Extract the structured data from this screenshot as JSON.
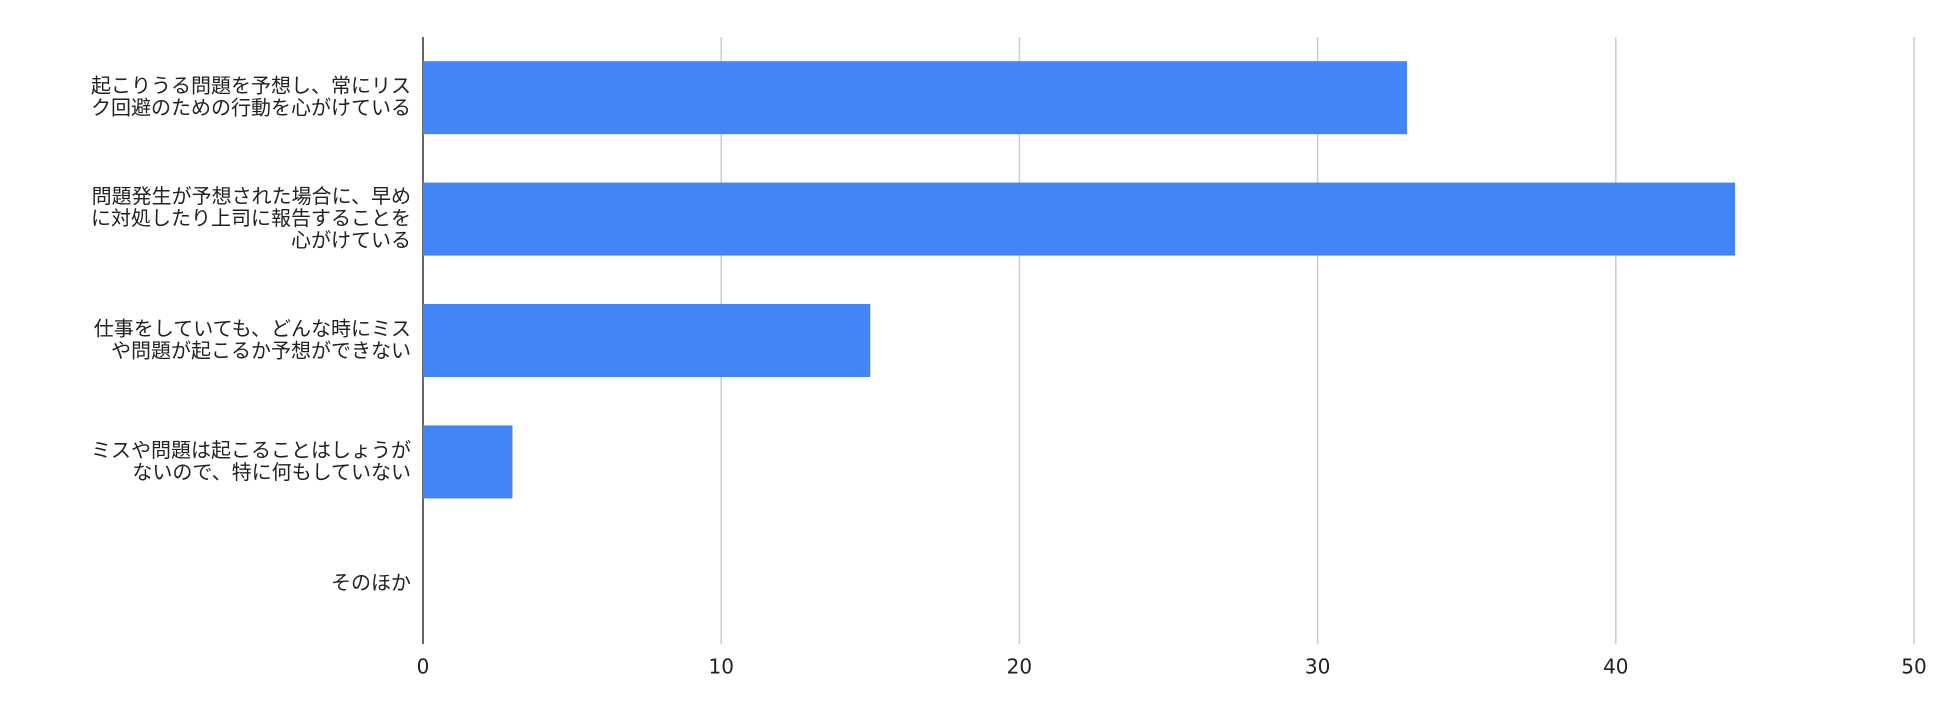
{
  "chart_data": {
    "type": "bar",
    "orientation": "horizontal",
    "categories": [
      "起こりうる問題を予想し、常にリスク回避のための行動を心がけている",
      "問題発生が予想された場合に、早めに対処したり上司に報告することを心がけている",
      "仕事をしていても、どんな時にミスや問題が起こるか予想ができない",
      "ミスや問題は起こることはしょうがないので、特に何もしていない",
      "そのほか"
    ],
    "values": [
      33,
      44,
      15,
      3,
      0
    ],
    "color": "#4285f4",
    "xlim": [
      0,
      50
    ],
    "xticks": [
      0,
      10,
      20,
      30,
      40,
      50
    ],
    "grid": true
  }
}
